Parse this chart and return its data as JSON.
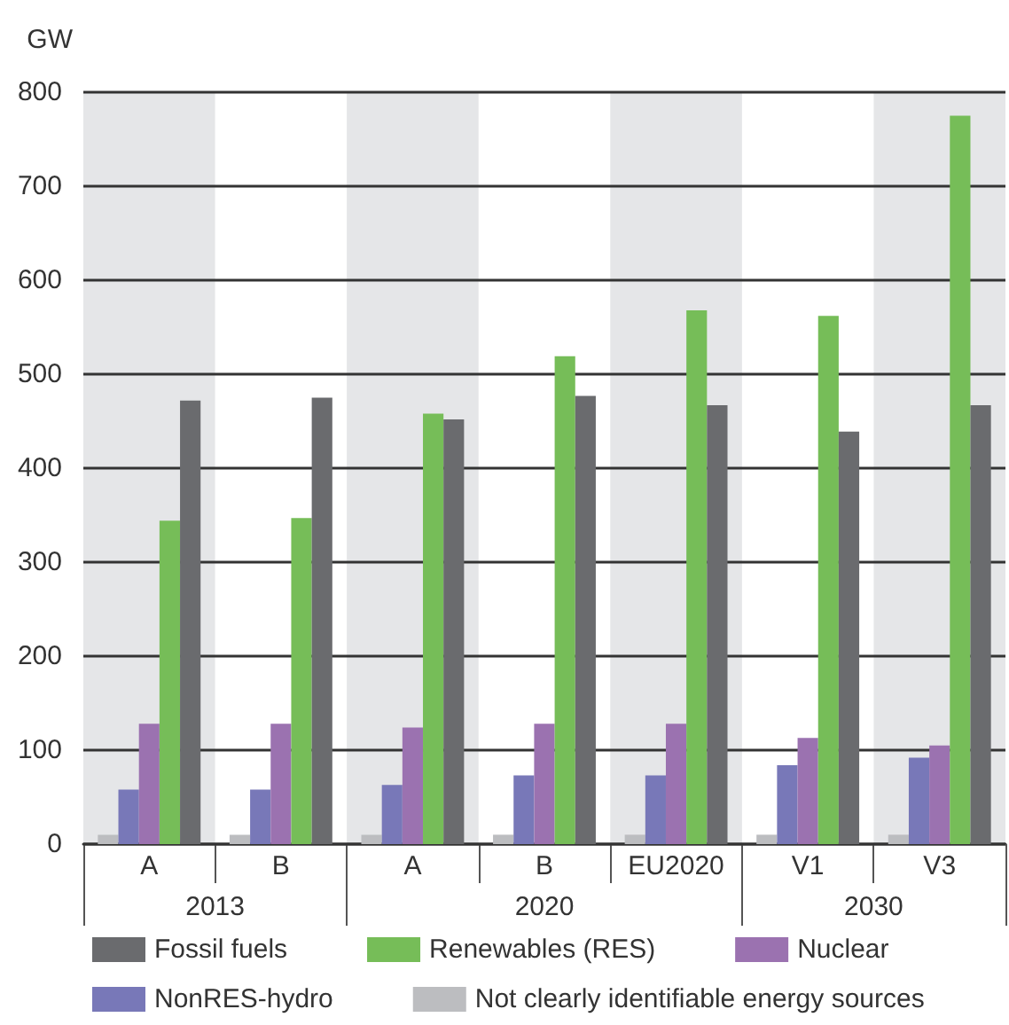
{
  "chart_data": {
    "type": "bar",
    "ylabel": "GW",
    "categories": [
      "A",
      "B",
      "A",
      "B",
      "EU2020",
      "V1",
      "V3"
    ],
    "annotations": [
      "2013",
      "2020",
      "2030"
    ],
    "series": [
      {
        "name": "Not clearly identifiable energy sources",
        "color": "#bcbdc0",
        "values": [
          10,
          10,
          10,
          10,
          10,
          10,
          10
        ]
      },
      {
        "name": "NonRES-hydro",
        "color": "#7878b8",
        "values": [
          58,
          58,
          63,
          73,
          73,
          84,
          92
        ]
      },
      {
        "name": "Nuclear",
        "color": "#9b72b0",
        "values": [
          128,
          128,
          124,
          128,
          128,
          113,
          105
        ]
      },
      {
        "name": "Renewables (RES)",
        "color": "#76bd58",
        "values": [
          344,
          347,
          458,
          519,
          568,
          562,
          775
        ]
      },
      {
        "name": "Fossil fuels",
        "color": "#6a6b6e",
        "values": [
          472,
          475,
          452,
          477,
          467,
          439,
          467
        ]
      }
    ],
    "ylim": [
      0,
      800
    ],
    "yticks": [
      0,
      100,
      200,
      300,
      400,
      500,
      600,
      700,
      800
    ],
    "grid": "y",
    "legend": "bottom"
  }
}
